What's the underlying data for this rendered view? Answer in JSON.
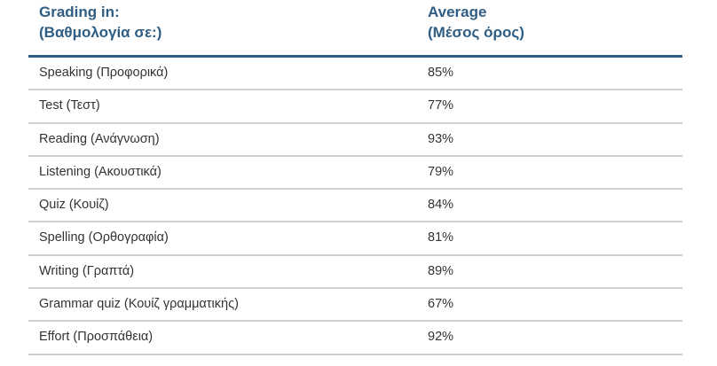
{
  "header": {
    "col1_line1": "Grading in:",
    "col1_line2": "(Βαθμολογία σε:)",
    "col2_line1": "Average",
    "col2_line2": "(Μέσος όρος)"
  },
  "rows": [
    {
      "subject": "Speaking (Προφορικά)",
      "average": "85%"
    },
    {
      "subject": "Test (Τεστ)",
      "average": "77%"
    },
    {
      "subject": "Reading (Ανάγνωση)",
      "average": "93%"
    },
    {
      "subject": "Listening (Ακουστικά)",
      "average": "79%"
    },
    {
      "subject": "Quiz (Κουίζ)",
      "average": "84%"
    },
    {
      "subject": "Spelling (Ορθογραφία)",
      "average": "81%"
    },
    {
      "subject": "Writing (Γραπτά)",
      "average": "89%"
    },
    {
      "subject": "Grammar quiz (Κουίζ γραμματικής)",
      "average": "67%"
    },
    {
      "subject": "Effort (Προσπάθεια)",
      "average": "92%"
    }
  ],
  "colors": {
    "header_text": "#2f5d83",
    "header_rule": "#2f5d83",
    "row_rule": "#cfcfcf",
    "body_text": "#333333"
  }
}
